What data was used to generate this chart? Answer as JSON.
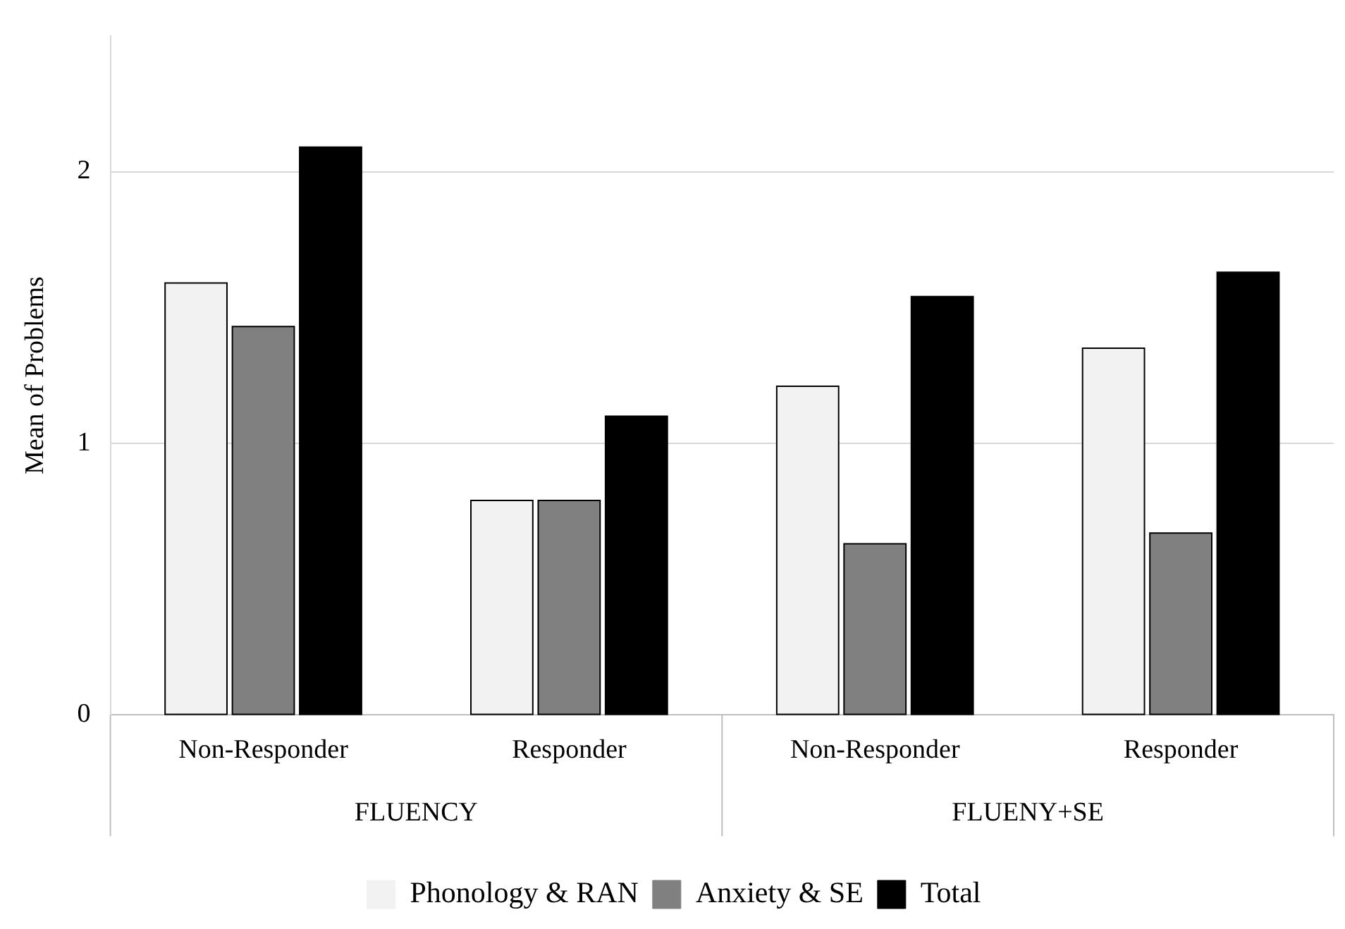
{
  "chart_data": {
    "type": "bar",
    "ylabel": "Mean of Problems",
    "categories": [
      "Non-Responder",
      "Responder",
      "Non-Responder",
      "Responder"
    ],
    "series": [
      {
        "name": "Phonology & RAN",
        "color": "#f2f2f2",
        "values": [
          1.59,
          0.79,
          1.21,
          1.35
        ]
      },
      {
        "name": "Anxiety & SE",
        "color": "#808080",
        "values": [
          1.43,
          0.79,
          0.63,
          0.67
        ]
      },
      {
        "name": "Total",
        "color": "#000000",
        "values": [
          2.09,
          1.1,
          1.54,
          1.63
        ]
      }
    ],
    "annotations": [
      "FLUENCY",
      "FLUENY+SE"
    ],
    "ylim": [
      0,
      2.5
    ],
    "yticks": [
      0,
      1,
      2
    ],
    "grid": "y",
    "legend": "bottom"
  }
}
